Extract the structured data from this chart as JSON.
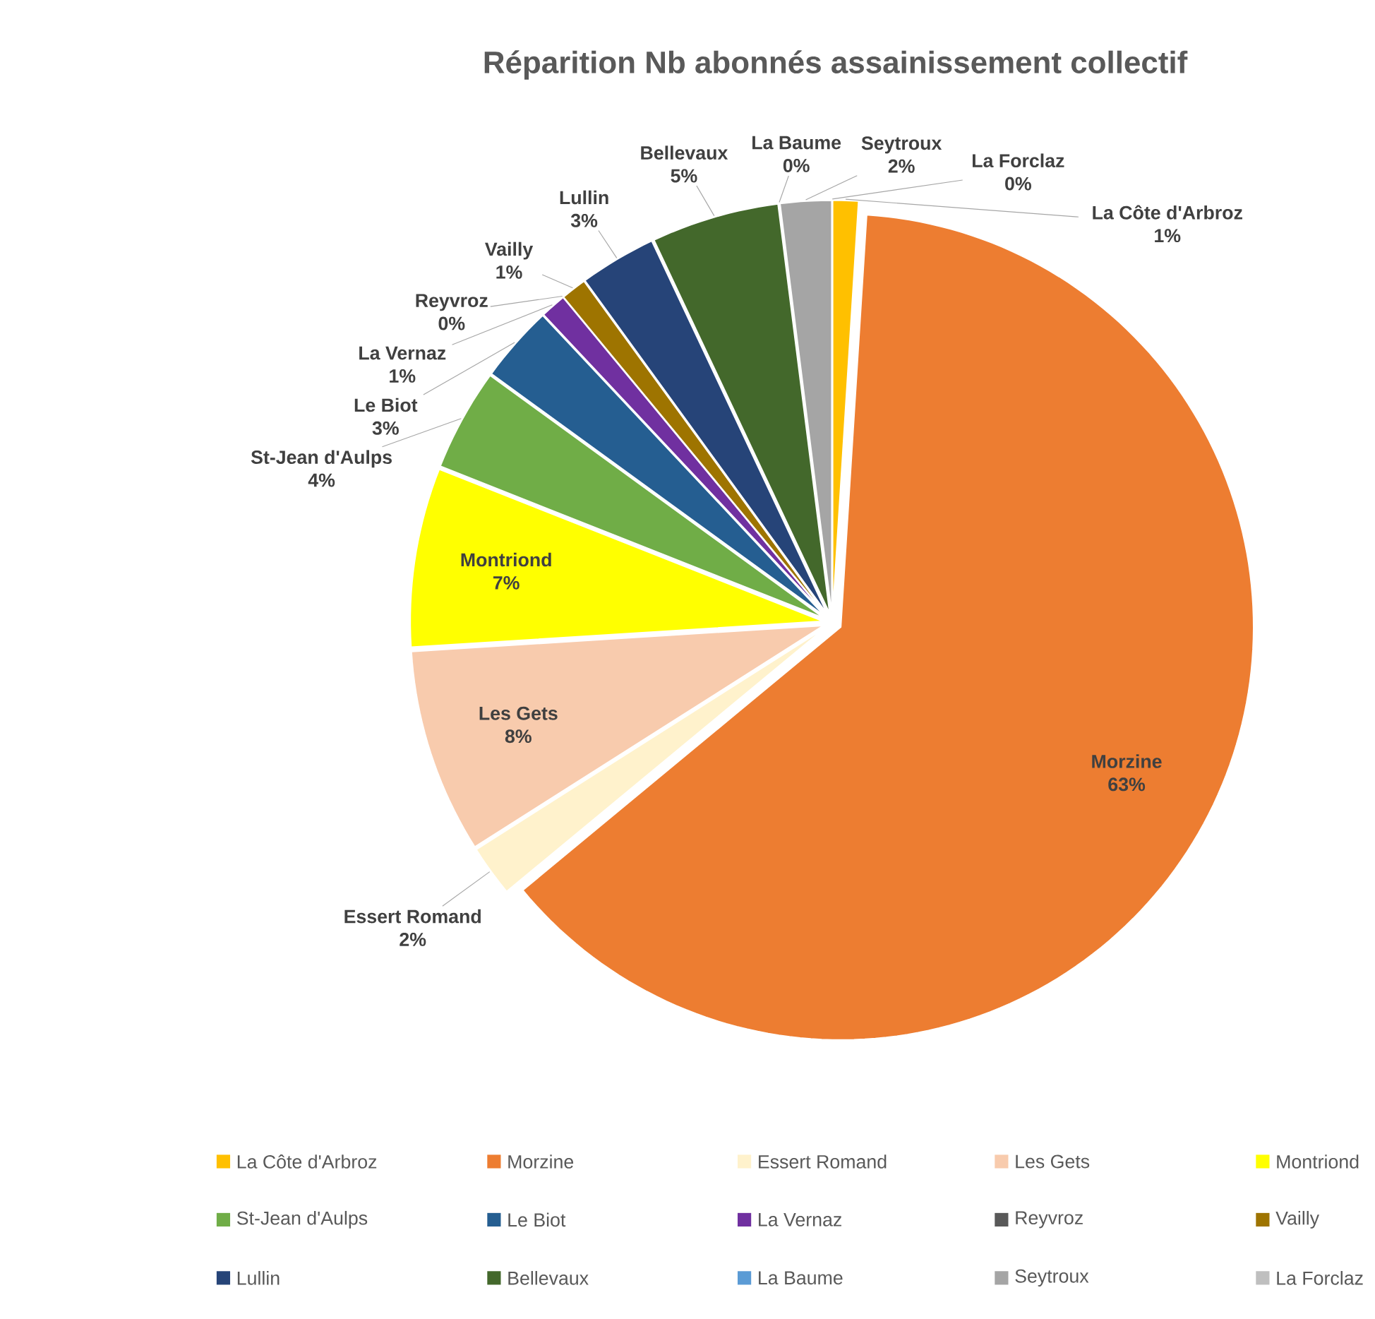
{
  "chart_data": {
    "type": "pie",
    "title": "Réparition Nb abonnés assainissement collectif",
    "categories": [
      "La Côte d'Arbroz",
      "Morzine",
      "Essert Romand",
      "Les Gets",
      "Montriond",
      "St-Jean d'Aulps",
      "Le Biot",
      "La Vernaz",
      "Reyvroz",
      "Vailly",
      "Lullin",
      "Bellevaux",
      "La Baume",
      "Seytroux",
      "La Forclaz"
    ],
    "values": [
      1,
      63,
      2,
      8,
      7,
      4,
      3,
      1,
      0,
      1,
      3,
      5,
      0,
      2,
      0
    ],
    "value_labels": [
      "1%",
      "63%",
      "2%",
      "8%",
      "7%",
      "4%",
      "3%",
      "1%",
      "0%",
      "1%",
      "3%",
      "5%",
      "0%",
      "2%",
      "0%"
    ],
    "colors": [
      "#ffc000",
      "#ed7d31",
      "#fff2cc",
      "#f8cbad",
      "#ffff00",
      "#70ad47",
      "#255e91",
      "#7030a0",
      "#595959",
      "#9e7400",
      "#264478",
      "#43682b",
      "#5b9bd5",
      "#a5a5a5",
      "#bfbfbf"
    ],
    "legend": "bottom"
  }
}
